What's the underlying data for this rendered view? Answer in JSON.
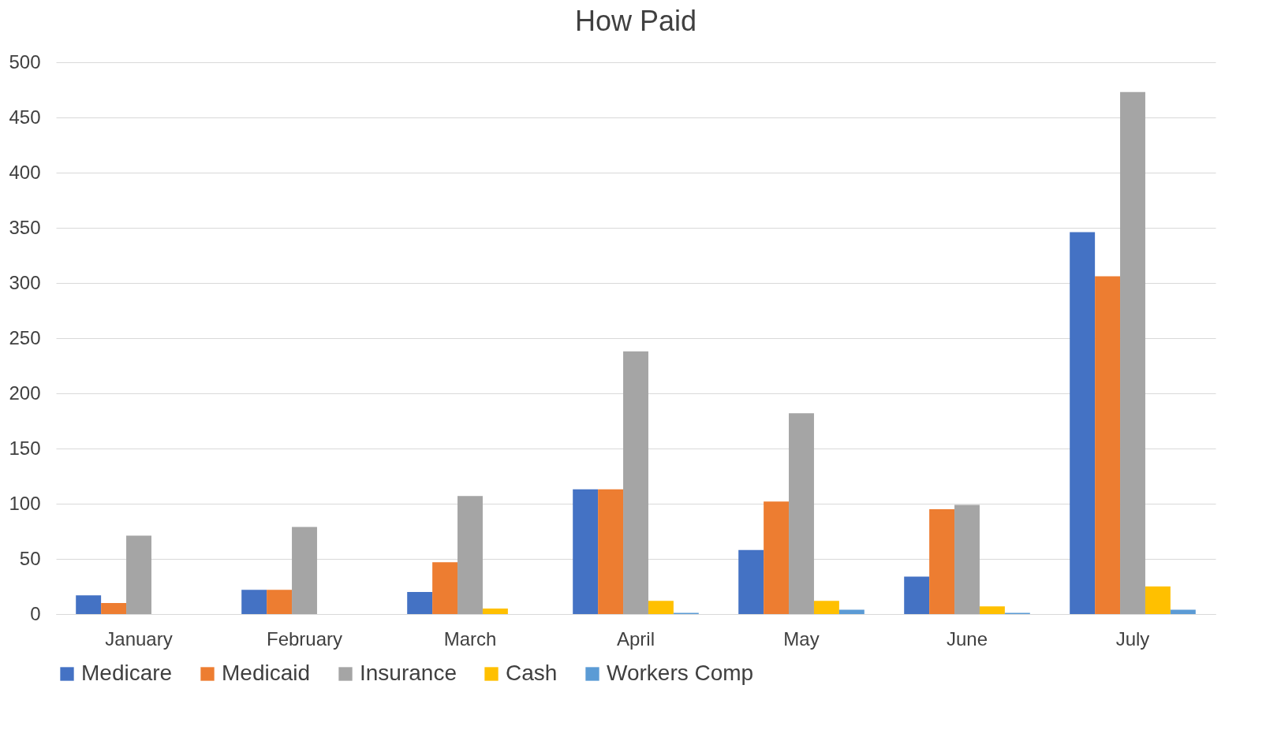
{
  "chart_data": {
    "type": "bar",
    "title": "How Paid",
    "categories": [
      "January",
      "February",
      "March",
      "April",
      "May",
      "June",
      "July"
    ],
    "series": [
      {
        "name": "Medicare",
        "color": "#4472c4",
        "values": [
          17,
          22,
          20,
          113,
          58,
          34,
          346
        ]
      },
      {
        "name": "Medicaid",
        "color": "#ed7d31",
        "values": [
          10,
          22,
          47,
          113,
          102,
          95,
          306
        ]
      },
      {
        "name": "Insurance",
        "color": "#a5a5a5",
        "values": [
          71,
          79,
          107,
          238,
          182,
          99,
          473
        ]
      },
      {
        "name": "Cash",
        "color": "#ffc000",
        "values": [
          0,
          0,
          5,
          12,
          12,
          7,
          25
        ]
      },
      {
        "name": "Workers Comp",
        "color": "#5b9bd5",
        "values": [
          0,
          0,
          0,
          1,
          4,
          1,
          4
        ]
      }
    ],
    "ylim": [
      0,
      500
    ],
    "yticks": [
      0,
      50,
      100,
      150,
      200,
      250,
      300,
      350,
      400,
      450,
      500
    ],
    "grid": "y",
    "legend": "bottom"
  }
}
